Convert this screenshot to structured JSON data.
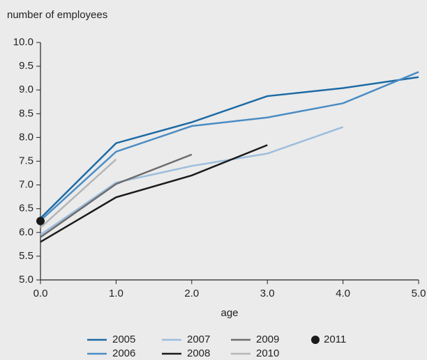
{
  "chart_data": {
    "type": "line",
    "title": "number of employees",
    "xlabel": "age",
    "x": [
      0,
      1,
      2,
      3,
      4,
      5
    ],
    "xlim": [
      0,
      5
    ],
    "xticks": [
      {
        "value": 0,
        "label": "0.0"
      },
      {
        "value": 1,
        "label": "1.0"
      },
      {
        "value": 2,
        "label": "2.0"
      },
      {
        "value": 3,
        "label": "3.0"
      },
      {
        "value": 4,
        "label": "4.0"
      },
      {
        "value": 5,
        "label": "5.0"
      }
    ],
    "ylim": [
      5,
      10
    ],
    "yticks": [
      {
        "value": 5,
        "label": "5.0"
      },
      5.5,
      {
        "value": 6,
        "label": "6.0"
      },
      6.5,
      {
        "value": 7,
        "label": "7.0"
      },
      7.5,
      {
        "value": 8,
        "label": "8.0"
      },
      8.5,
      {
        "value": 9,
        "label": "9.0"
      },
      9.5,
      {
        "value": 10,
        "label": "10.0"
      }
    ],
    "grid": false,
    "series": [
      {
        "name": "2005",
        "color": "#1c6aa5",
        "values": [
          6.3,
          7.88,
          8.32,
          8.87,
          9.04,
          9.27
        ]
      },
      {
        "name": "2006",
        "color": "#4a8cc4",
        "values": [
          6.25,
          7.7,
          8.24,
          8.42,
          8.72,
          9.38
        ]
      },
      {
        "name": "2007",
        "color": "#9dbddd",
        "values": [
          5.95,
          7.05,
          7.4,
          7.66,
          8.22,
          null
        ]
      },
      {
        "name": "2008",
        "color": "#1a1a1a",
        "values": [
          5.8,
          6.74,
          7.2,
          7.84,
          null,
          null
        ]
      },
      {
        "name": "2009",
        "color": "#6d6d6d",
        "values": [
          5.9,
          7.02,
          7.64,
          null,
          null,
          null
        ]
      },
      {
        "name": "2010",
        "color": "#b5b5b5",
        "values": [
          6.1,
          7.54,
          null,
          null,
          null,
          null
        ]
      },
      {
        "name": "2011",
        "color": "#1a1a1a",
        "marker": "dot",
        "values": [
          6.24,
          null,
          null,
          null,
          null,
          null
        ]
      }
    ]
  }
}
